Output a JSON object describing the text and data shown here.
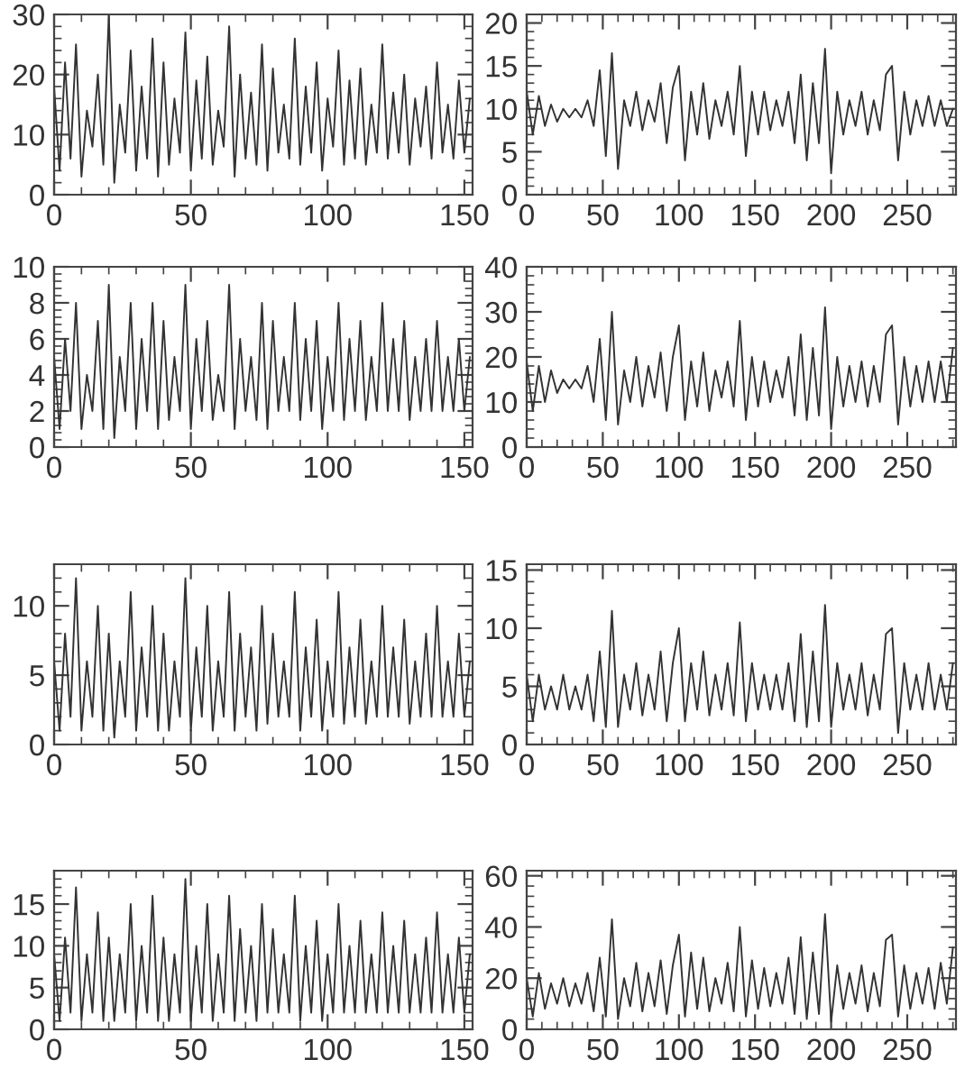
{
  "chart_data": [
    {
      "type": "line",
      "color": "#333333",
      "xlim": [
        0,
        153
      ],
      "xticks": [
        0,
        50,
        100,
        150
      ],
      "ylim": [
        0,
        30
      ],
      "yticks": [
        0,
        10,
        20,
        30
      ],
      "x": [
        0,
        2,
        4,
        6,
        8,
        10,
        12,
        14,
        16,
        18,
        20,
        22,
        24,
        26,
        28,
        30,
        32,
        34,
        36,
        38,
        40,
        42,
        44,
        46,
        48,
        50,
        52,
        54,
        56,
        58,
        60,
        62,
        64,
        66,
        68,
        70,
        72,
        74,
        76,
        78,
        80,
        82,
        84,
        86,
        88,
        90,
        92,
        94,
        96,
        98,
        100,
        102,
        104,
        106,
        108,
        110,
        112,
        114,
        116,
        118,
        120,
        122,
        124,
        126,
        128,
        130,
        132,
        134,
        136,
        138,
        140,
        142,
        144,
        146,
        148,
        150,
        152
      ],
      "values": [
        18,
        4,
        22,
        6,
        25,
        3,
        14,
        8,
        20,
        5,
        30,
        2,
        15,
        7,
        24,
        4,
        18,
        6,
        26,
        3,
        22,
        5,
        16,
        7,
        27,
        4,
        19,
        6,
        23,
        5,
        14,
        8,
        28,
        3,
        20,
        6,
        17,
        5,
        25,
        4,
        21,
        7,
        15,
        6,
        26,
        5,
        18,
        7,
        22,
        4,
        16,
        8,
        24,
        5,
        19,
        6,
        21,
        5,
        15,
        7,
        25,
        6,
        17,
        7,
        20,
        5,
        16,
        8,
        18,
        6,
        22,
        7,
        15,
        6,
        19,
        7,
        16
      ]
    },
    {
      "type": "line",
      "color": "#333333",
      "xlim": [
        0,
        282
      ],
      "xticks": [
        0,
        50,
        100,
        150,
        200,
        250
      ],
      "ylim": [
        0,
        21
      ],
      "yticks": [
        0,
        5,
        10,
        15,
        20
      ],
      "x": [
        0,
        4,
        8,
        12,
        16,
        20,
        24,
        28,
        32,
        36,
        40,
        44,
        48,
        52,
        56,
        60,
        64,
        68,
        72,
        76,
        80,
        84,
        88,
        92,
        96,
        100,
        104,
        108,
        112,
        116,
        120,
        124,
        128,
        132,
        136,
        140,
        144,
        148,
        152,
        156,
        160,
        164,
        168,
        172,
        176,
        180,
        184,
        188,
        192,
        196,
        200,
        204,
        208,
        212,
        216,
        220,
        224,
        228,
        232,
        236,
        240,
        244,
        248,
        252,
        256,
        260,
        264,
        268,
        272,
        276,
        280
      ],
      "values": [
        12,
        7,
        11.5,
        8,
        10.5,
        8.5,
        10,
        9,
        10,
        9,
        11,
        8,
        14.5,
        4.5,
        16.5,
        3,
        11,
        8,
        12,
        7.5,
        11,
        8.5,
        13,
        6,
        12.5,
        15,
        4,
        12,
        7,
        13,
        6.5,
        11,
        8,
        12,
        7,
        15,
        4.5,
        12,
        7,
        12,
        7.5,
        11,
        8,
        12,
        6,
        14,
        4,
        13,
        6,
        17,
        2.5,
        12,
        7,
        11,
        8,
        12,
        7,
        11,
        7.5,
        14,
        15,
        4,
        12,
        7,
        11,
        8,
        11.5,
        8,
        11,
        8,
        10
      ]
    },
    {
      "type": "line",
      "color": "#333333",
      "xlim": [
        0,
        153
      ],
      "xticks": [
        0,
        50,
        100,
        150
      ],
      "ylim": [
        0,
        10
      ],
      "yticks": [
        0,
        2,
        4,
        6,
        8,
        10
      ],
      "x": [
        0,
        2,
        4,
        6,
        8,
        10,
        12,
        14,
        16,
        18,
        20,
        22,
        24,
        26,
        28,
        30,
        32,
        34,
        36,
        38,
        40,
        42,
        44,
        46,
        48,
        50,
        52,
        54,
        56,
        58,
        60,
        62,
        64,
        66,
        68,
        70,
        72,
        74,
        76,
        78,
        80,
        82,
        84,
        86,
        88,
        90,
        92,
        94,
        96,
        98,
        100,
        102,
        104,
        106,
        108,
        110,
        112,
        114,
        116,
        118,
        120,
        122,
        124,
        126,
        128,
        130,
        132,
        134,
        136,
        138,
        140,
        142,
        144,
        146,
        148,
        150,
        152
      ],
      "values": [
        5,
        1,
        6,
        2,
        8,
        1,
        4,
        2,
        7,
        1,
        9,
        0.5,
        5,
        2,
        8,
        1,
        6,
        2,
        8,
        1,
        7,
        1.5,
        5,
        2,
        9,
        1,
        6,
        2,
        7,
        1.5,
        4,
        2,
        9,
        1,
        6,
        2,
        5,
        1.5,
        8,
        1,
        7,
        2,
        5,
        2,
        8,
        1.5,
        6,
        2,
        7,
        1,
        5,
        2,
        8,
        1.5,
        6,
        2,
        7,
        1.5,
        5,
        2,
        8,
        2,
        6,
        2,
        7,
        1.5,
        5,
        2,
        6,
        2,
        7,
        2,
        5,
        2,
        6,
        2,
        5
      ]
    },
    {
      "type": "line",
      "color": "#333333",
      "xlim": [
        0,
        282
      ],
      "xticks": [
        0,
        50,
        100,
        150,
        200,
        250
      ],
      "ylim": [
        0,
        40
      ],
      "yticks": [
        0,
        10,
        20,
        30,
        40
      ],
      "x": [
        0,
        4,
        8,
        12,
        16,
        20,
        24,
        28,
        32,
        36,
        40,
        44,
        48,
        52,
        56,
        60,
        64,
        68,
        72,
        76,
        80,
        84,
        88,
        92,
        96,
        100,
        104,
        108,
        112,
        116,
        120,
        124,
        128,
        132,
        136,
        140,
        144,
        148,
        152,
        156,
        160,
        164,
        168,
        172,
        176,
        180,
        184,
        188,
        192,
        196,
        200,
        204,
        208,
        212,
        216,
        220,
        224,
        228,
        232,
        236,
        240,
        244,
        248,
        252,
        256,
        260,
        264,
        268,
        272,
        276,
        280
      ],
      "values": [
        19,
        8,
        18,
        10,
        17,
        12,
        15,
        13,
        15,
        13,
        18,
        10,
        24,
        6,
        30,
        5,
        17,
        10,
        20,
        9,
        18,
        11,
        21,
        8,
        20,
        27,
        6,
        19,
        9,
        21,
        8,
        17,
        11,
        19,
        9,
        28,
        6,
        20,
        9,
        19,
        10,
        17,
        11,
        20,
        7,
        25,
        6,
        22,
        7,
        31,
        4,
        20,
        9,
        18,
        10,
        19,
        9,
        18,
        10,
        25,
        27,
        5,
        20,
        9,
        18,
        10,
        19,
        10,
        19,
        10,
        22
      ]
    },
    {
      "type": "line",
      "color": "#333333",
      "xlim": [
        0,
        153
      ],
      "xticks": [
        0,
        50,
        100,
        150
      ],
      "ylim": [
        0,
        13
      ],
      "yticks": [
        0,
        5,
        10
      ],
      "x": [
        0,
        2,
        4,
        6,
        8,
        10,
        12,
        14,
        16,
        18,
        20,
        22,
        24,
        26,
        28,
        30,
        32,
        34,
        36,
        38,
        40,
        42,
        44,
        46,
        48,
        50,
        52,
        54,
        56,
        58,
        60,
        62,
        64,
        66,
        68,
        70,
        72,
        74,
        76,
        78,
        80,
        82,
        84,
        86,
        88,
        90,
        92,
        94,
        96,
        98,
        100,
        102,
        104,
        106,
        108,
        110,
        112,
        114,
        116,
        118,
        120,
        122,
        124,
        126,
        128,
        130,
        132,
        134,
        136,
        138,
        140,
        142,
        144,
        146,
        148,
        150,
        152
      ],
      "values": [
        6,
        1,
        8,
        2,
        12,
        1,
        6,
        2,
        10,
        1,
        8,
        0.5,
        6,
        2,
        11,
        1,
        7,
        2,
        10,
        1,
        8,
        1,
        6,
        2,
        12,
        1,
        7,
        2,
        10,
        1,
        6,
        2,
        11,
        1,
        8,
        2,
        7,
        1,
        10,
        1.5,
        8,
        2,
        6,
        2,
        11,
        1,
        7,
        2,
        9,
        1,
        6,
        2,
        11,
        1.5,
        7,
        2,
        9,
        1.5,
        6,
        2,
        10,
        2,
        7,
        2,
        9,
        1.5,
        6,
        2,
        8,
        2,
        10,
        2,
        6,
        2,
        8,
        2,
        6
      ]
    },
    {
      "type": "line",
      "color": "#333333",
      "xlim": [
        0,
        282
      ],
      "xticks": [
        0,
        50,
        100,
        150,
        200,
        250
      ],
      "ylim": [
        0,
        15.5
      ],
      "yticks": [
        0,
        5,
        10,
        15
      ],
      "x": [
        0,
        4,
        8,
        12,
        16,
        20,
        24,
        28,
        32,
        36,
        40,
        44,
        48,
        52,
        56,
        60,
        64,
        68,
        72,
        76,
        80,
        84,
        88,
        92,
        96,
        100,
        104,
        108,
        112,
        116,
        120,
        124,
        128,
        132,
        136,
        140,
        144,
        148,
        152,
        156,
        160,
        164,
        168,
        172,
        176,
        180,
        184,
        188,
        192,
        196,
        200,
        204,
        208,
        212,
        216,
        220,
        224,
        228,
        232,
        236,
        240,
        244,
        248,
        252,
        256,
        260,
        264,
        268,
        272,
        276,
        280
      ],
      "values": [
        6,
        2,
        6,
        3,
        5,
        3,
        6,
        3,
        5,
        3,
        6,
        2,
        8,
        1.5,
        11.5,
        1.5,
        6,
        3,
        7,
        2.5,
        6,
        3,
        8,
        2,
        7,
        10,
        2,
        7,
        3,
        8,
        2.5,
        6,
        3,
        7,
        2.5,
        10.5,
        2,
        7,
        3,
        6,
        3,
        6,
        3,
        7,
        2,
        9.5,
        1.5,
        8,
        2,
        12,
        1.5,
        7,
        3,
        6,
        3,
        7,
        2.5,
        6,
        3,
        9.5,
        10,
        1,
        7,
        3,
        6,
        3,
        7,
        3,
        6,
        3,
        7
      ]
    },
    {
      "type": "line",
      "color": "#333333",
      "xlim": [
        0,
        153
      ],
      "xticks": [
        0,
        50,
        100,
        150
      ],
      "ylim": [
        0,
        19
      ],
      "yticks": [
        0,
        5,
        10,
        15
      ],
      "x": [
        0,
        2,
        4,
        6,
        8,
        10,
        12,
        14,
        16,
        18,
        20,
        22,
        24,
        26,
        28,
        30,
        32,
        34,
        36,
        38,
        40,
        42,
        44,
        46,
        48,
        50,
        52,
        54,
        56,
        58,
        60,
        62,
        64,
        66,
        68,
        70,
        72,
        74,
        76,
        78,
        80,
        82,
        84,
        86,
        88,
        90,
        92,
        94,
        96,
        98,
        100,
        102,
        104,
        106,
        108,
        110,
        112,
        114,
        116,
        118,
        120,
        122,
        124,
        126,
        128,
        130,
        132,
        134,
        136,
        138,
        140,
        142,
        144,
        146,
        148,
        150,
        152
      ],
      "values": [
        9,
        1,
        11,
        2,
        17,
        1,
        9,
        2,
        14,
        1,
        11,
        1,
        9,
        2,
        15,
        1,
        10,
        2,
        16,
        1,
        11,
        1,
        9,
        2,
        18,
        1,
        10,
        2,
        15,
        1,
        9,
        2,
        16,
        1,
        12,
        2,
        10,
        1,
        15,
        2,
        12,
        2,
        9,
        2,
        16,
        1,
        10,
        2,
        13,
        1,
        9,
        2,
        15,
        2,
        10,
        2,
        13,
        2,
        9,
        2,
        14,
        2,
        10,
        2,
        13,
        2,
        9,
        2,
        11,
        2,
        14,
        2,
        9,
        2,
        11,
        2,
        9
      ]
    },
    {
      "type": "line",
      "color": "#333333",
      "xlim": [
        0,
        282
      ],
      "xticks": [
        0,
        50,
        100,
        150,
        200,
        250
      ],
      "ylim": [
        0,
        62
      ],
      "yticks": [
        0,
        20,
        40,
        60
      ],
      "x": [
        0,
        4,
        8,
        12,
        16,
        20,
        24,
        28,
        32,
        36,
        40,
        44,
        48,
        52,
        56,
        60,
        64,
        68,
        72,
        76,
        80,
        84,
        88,
        92,
        96,
        100,
        104,
        108,
        112,
        116,
        120,
        124,
        128,
        132,
        136,
        140,
        144,
        148,
        152,
        156,
        160,
        164,
        168,
        172,
        176,
        180,
        184,
        188,
        192,
        196,
        200,
        204,
        208,
        212,
        216,
        220,
        224,
        228,
        232,
        236,
        240,
        244,
        248,
        252,
        256,
        260,
        264,
        268,
        272,
        276,
        280
      ],
      "values": [
        20,
        5,
        22,
        8,
        18,
        10,
        20,
        9,
        18,
        10,
        22,
        7,
        28,
        5,
        43,
        4,
        20,
        9,
        26,
        7,
        22,
        9,
        27,
        6,
        25,
        37,
        5,
        30,
        8,
        28,
        7,
        20,
        10,
        26,
        7,
        40,
        5,
        27,
        8,
        24,
        9,
        22,
        10,
        28,
        6,
        36,
        4,
        30,
        6,
        45,
        3,
        25,
        8,
        22,
        10,
        25,
        7,
        22,
        9,
        35,
        37,
        5,
        25,
        8,
        22,
        10,
        24,
        8,
        26,
        10,
        32
      ]
    }
  ]
}
